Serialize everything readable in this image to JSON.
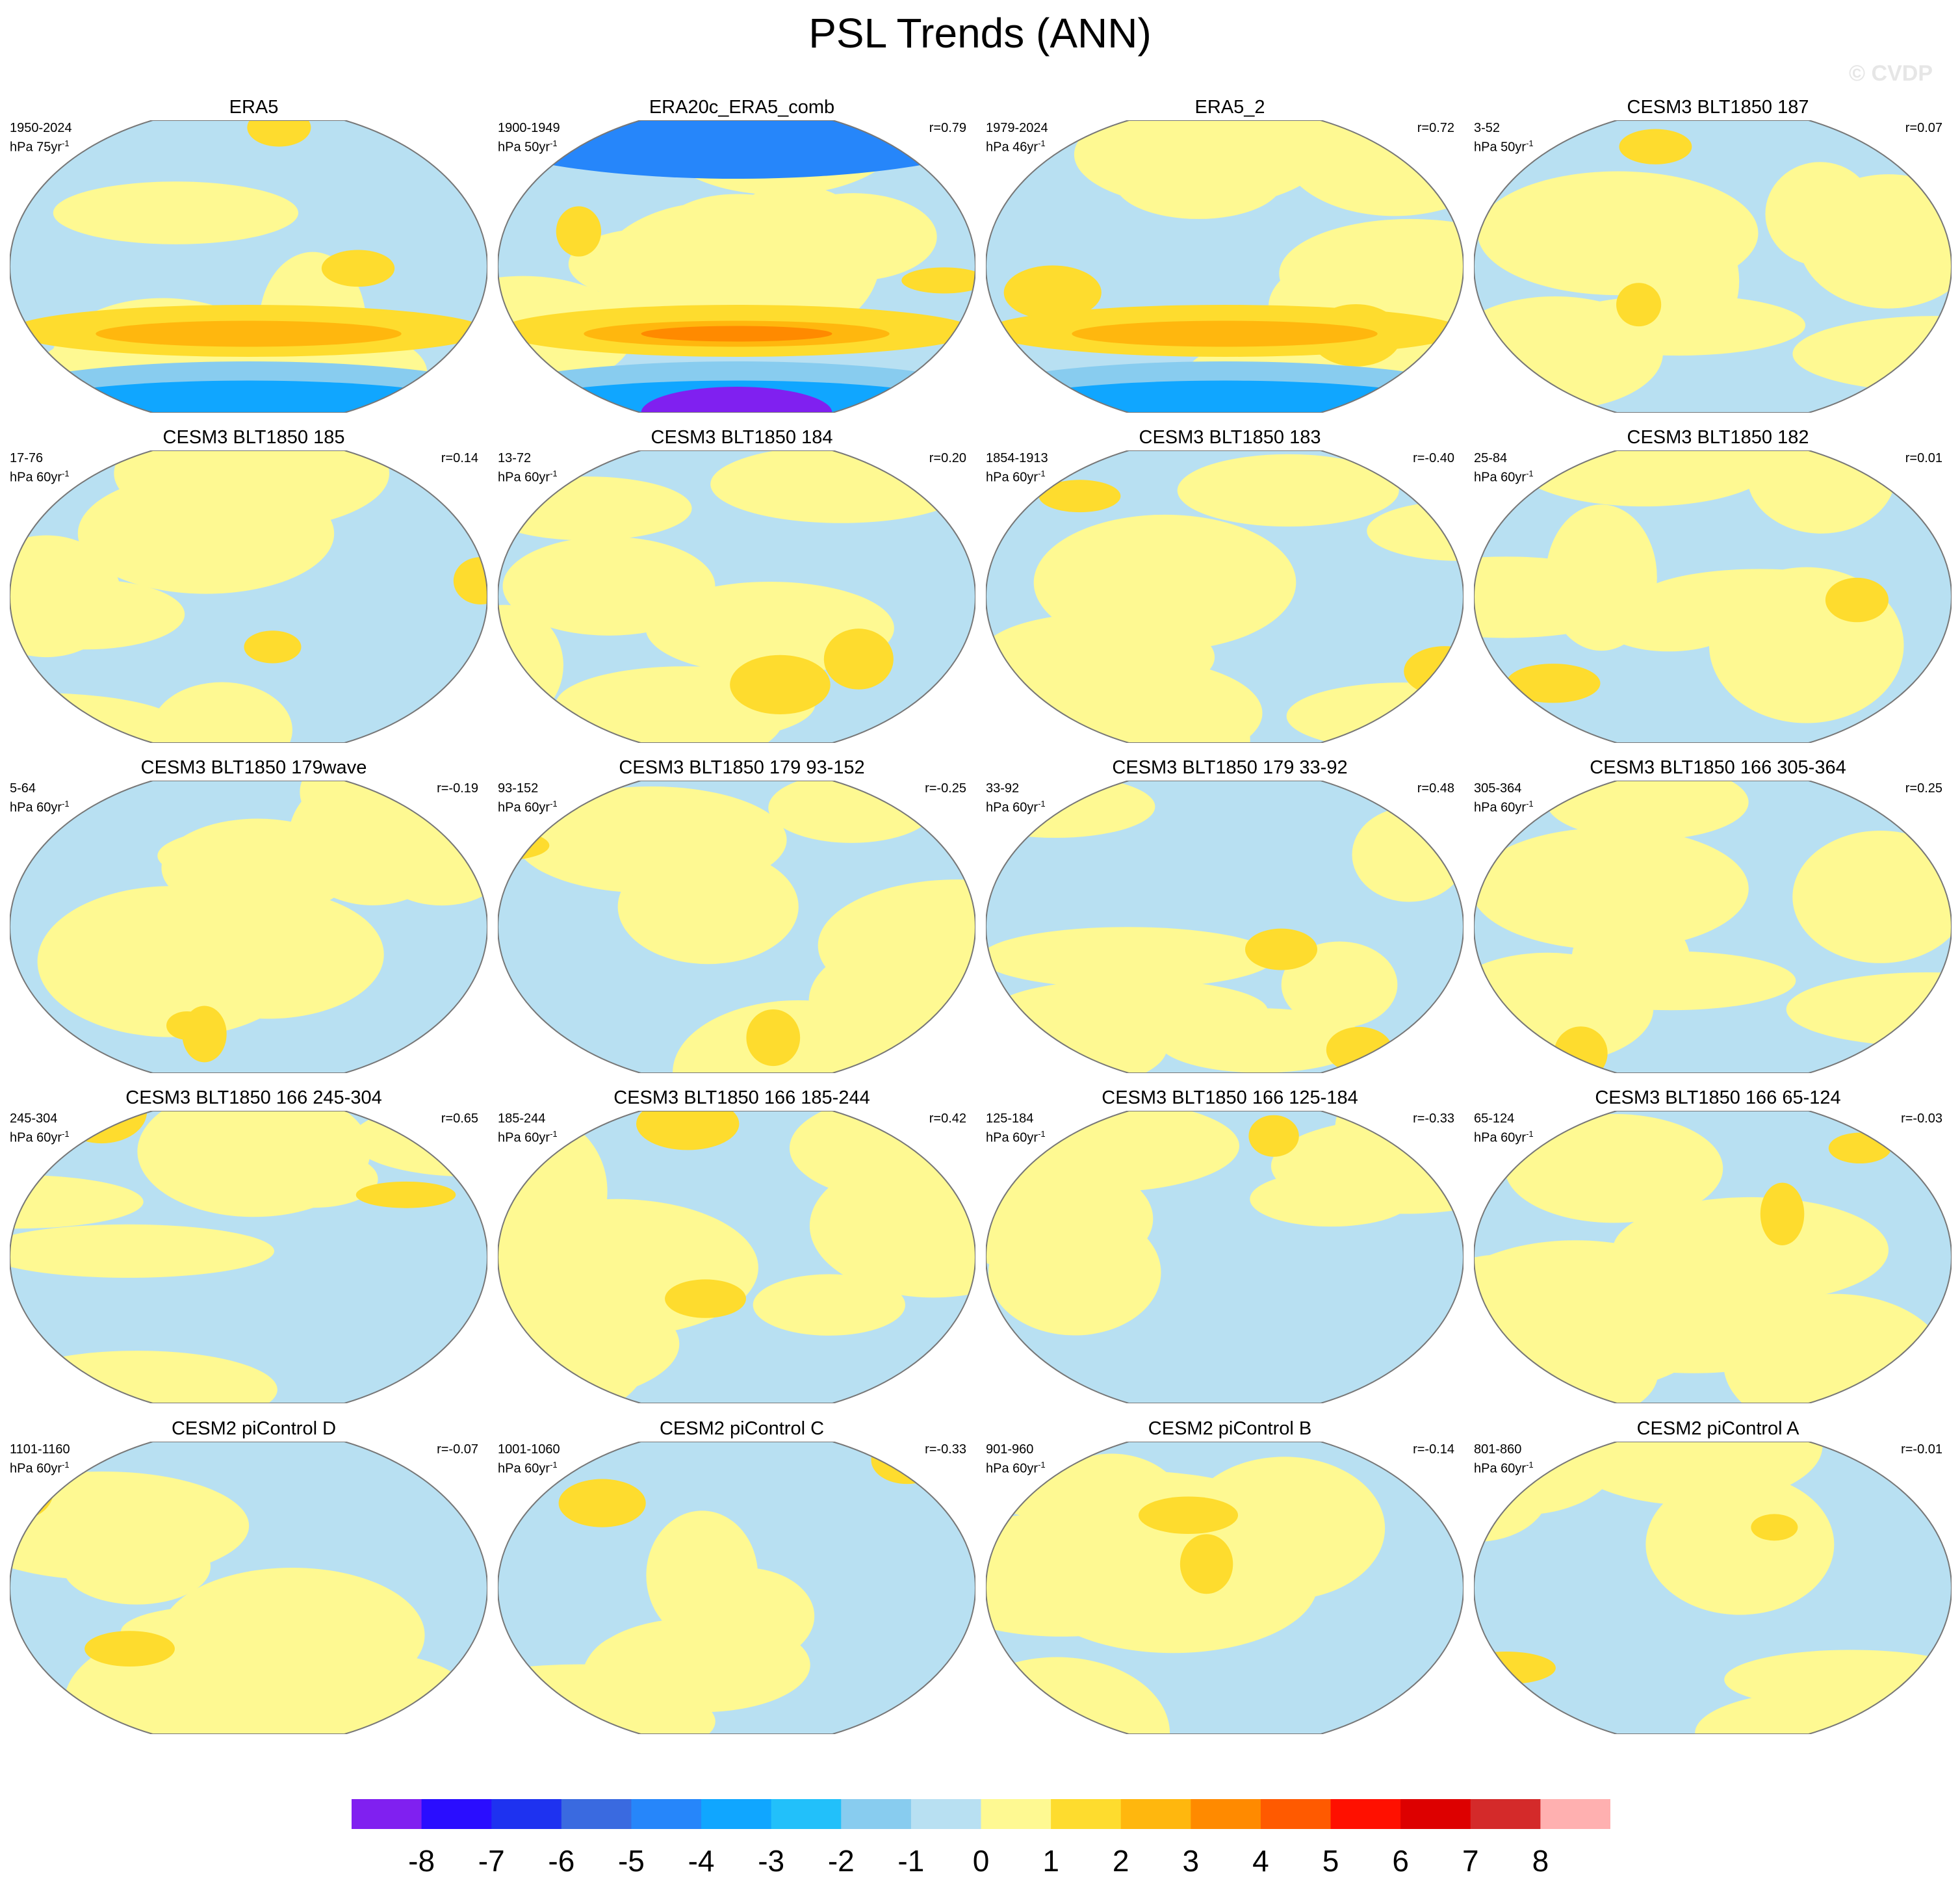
{
  "title": "PSL Trends (ANN)",
  "watermark": "© CVDP",
  "chart_data": {
    "type": "heatmap",
    "title": "PSL Trends (ANN)",
    "projection": "global map (Winkel-like), Pacific-centered",
    "panels": [
      {
        "title": "ERA5",
        "period": "1950-2024",
        "units": "hPa 75yr",
        "units_exp": "-1",
        "r": ""
      },
      {
        "title": "ERA20c_ERA5_comb",
        "period": "1900-1949",
        "units": "hPa 50yr",
        "units_exp": "-1",
        "r": "r=0.79"
      },
      {
        "title": "ERA5_2",
        "period": "1979-2024",
        "units": "hPa 46yr",
        "units_exp": "-1",
        "r": "r=0.72"
      },
      {
        "title": "CESM3 BLT1850 187",
        "period": "3-52",
        "units": "hPa 50yr",
        "units_exp": "-1",
        "r": "r=0.07"
      },
      {
        "title": "CESM3 BLT1850 185",
        "period": "17-76",
        "units": "hPa 60yr",
        "units_exp": "-1",
        "r": "r=0.14"
      },
      {
        "title": "CESM3 BLT1850 184",
        "period": "13-72",
        "units": "hPa 60yr",
        "units_exp": "-1",
        "r": "r=0.20"
      },
      {
        "title": "CESM3 BLT1850 183",
        "period": "1854-1913",
        "units": "hPa 60yr",
        "units_exp": "-1",
        "r": "r=-0.40"
      },
      {
        "title": "CESM3 BLT1850 182",
        "period": "25-84",
        "units": "hPa 60yr",
        "units_exp": "-1",
        "r": "r=0.01"
      },
      {
        "title": "CESM3 BLT1850 179wave",
        "period": "5-64",
        "units": "hPa 60yr",
        "units_exp": "-1",
        "r": "r=-0.19"
      },
      {
        "title": "CESM3 BLT1850 179 93-152",
        "period": "93-152",
        "units": "hPa 60yr",
        "units_exp": "-1",
        "r": "r=-0.25"
      },
      {
        "title": "CESM3 BLT1850 179 33-92",
        "period": "33-92",
        "units": "hPa 60yr",
        "units_exp": "-1",
        "r": "r=0.48"
      },
      {
        "title": "CESM3 BLT1850 166 305-364",
        "period": "305-364",
        "units": "hPa 60yr",
        "units_exp": "-1",
        "r": "r=0.25"
      },
      {
        "title": "CESM3 BLT1850 166 245-304",
        "period": "245-304",
        "units": "hPa 60yr",
        "units_exp": "-1",
        "r": "r=0.65"
      },
      {
        "title": "CESM3 BLT1850 166 185-244",
        "period": "185-244",
        "units": "hPa 60yr",
        "units_exp": "-1",
        "r": "r=0.42"
      },
      {
        "title": "CESM3 BLT1850 166 125-184",
        "period": "125-184",
        "units": "hPa 60yr",
        "units_exp": "-1",
        "r": "r=-0.33"
      },
      {
        "title": "CESM3 BLT1850 166 65-124",
        "period": "65-124",
        "units": "hPa 60yr",
        "units_exp": "-1",
        "r": "r=-0.03"
      },
      {
        "title": "CESM2 piControl D",
        "period": "1101-1160",
        "units": "hPa 60yr",
        "units_exp": "-1",
        "r": "r=-0.07"
      },
      {
        "title": "CESM2 piControl C",
        "period": "1001-1060",
        "units": "hPa 60yr",
        "units_exp": "-1",
        "r": "r=-0.33"
      },
      {
        "title": "CESM2 piControl B",
        "period": "901-960",
        "units": "hPa 60yr",
        "units_exp": "-1",
        "r": "r=-0.14"
      },
      {
        "title": "CESM2 piControl A",
        "period": "801-860",
        "units": "hPa 60yr",
        "units_exp": "-1",
        "r": "r=-0.01"
      }
    ],
    "colorbar": {
      "labels": [
        "-8",
        "-7",
        "-6",
        "-5",
        "-4",
        "-3",
        "-2",
        "-1",
        "0",
        "1",
        "2",
        "3",
        "4",
        "5",
        "6",
        "7",
        "8"
      ],
      "colors": [
        "#8020f0",
        "#2a0dff",
        "#1e32f0",
        "#3a6ae0",
        "#2686fa",
        "#10a6ff",
        "#22c0fa",
        "#88ccef",
        "#b8e0f2",
        "#fef992",
        "#fedc2e",
        "#ffb70e",
        "#ff8a00",
        "#ff5a00",
        "#ff1000",
        "#dd0000",
        "#d42a2a",
        "#ffb0b0"
      ]
    }
  }
}
